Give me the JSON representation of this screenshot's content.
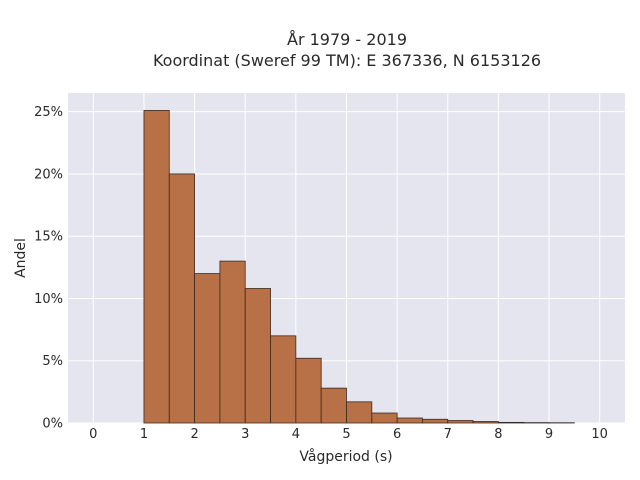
{
  "chart_data": {
    "type": "bar",
    "title_line1": "År 1979 - 2019",
    "title_line2": "Koordinat (Sweref 99 TM): E 367336, N 6153126",
    "xlabel": "Vågperiod (s)",
    "ylabel": "Andel",
    "xlim": [
      -0.5,
      10.5
    ],
    "ylim": [
      0,
      26.5
    ],
    "x_ticks": [
      0,
      1,
      2,
      3,
      4,
      5,
      6,
      7,
      8,
      9,
      10
    ],
    "y_ticks": [
      0,
      5,
      10,
      15,
      20,
      25
    ],
    "y_tick_labels": [
      "0%",
      "5%",
      "10%",
      "15%",
      "20%",
      "25%"
    ],
    "grid": true,
    "bin_width": 0.5,
    "bins": [
      {
        "start": 1.0,
        "value": 25.1
      },
      {
        "start": 1.5,
        "value": 20.0
      },
      {
        "start": 2.0,
        "value": 12.0
      },
      {
        "start": 2.5,
        "value": 13.0
      },
      {
        "start": 3.0,
        "value": 10.8
      },
      {
        "start": 3.5,
        "value": 7.0
      },
      {
        "start": 4.0,
        "value": 5.2
      },
      {
        "start": 4.5,
        "value": 2.8
      },
      {
        "start": 5.0,
        "value": 1.7
      },
      {
        "start": 5.5,
        "value": 0.8
      },
      {
        "start": 6.0,
        "value": 0.4
      },
      {
        "start": 6.5,
        "value": 0.3
      },
      {
        "start": 7.0,
        "value": 0.2
      },
      {
        "start": 7.5,
        "value": 0.12
      },
      {
        "start": 8.0,
        "value": 0.05
      },
      {
        "start": 8.5,
        "value": 0.03
      },
      {
        "start": 9.0,
        "value": 0.02
      }
    ],
    "colors": {
      "plot_bg": "#e5e5ef",
      "grid": "#ffffff",
      "bar_fill": "#b87046",
      "bar_stroke": "#3a2a20"
    }
  }
}
